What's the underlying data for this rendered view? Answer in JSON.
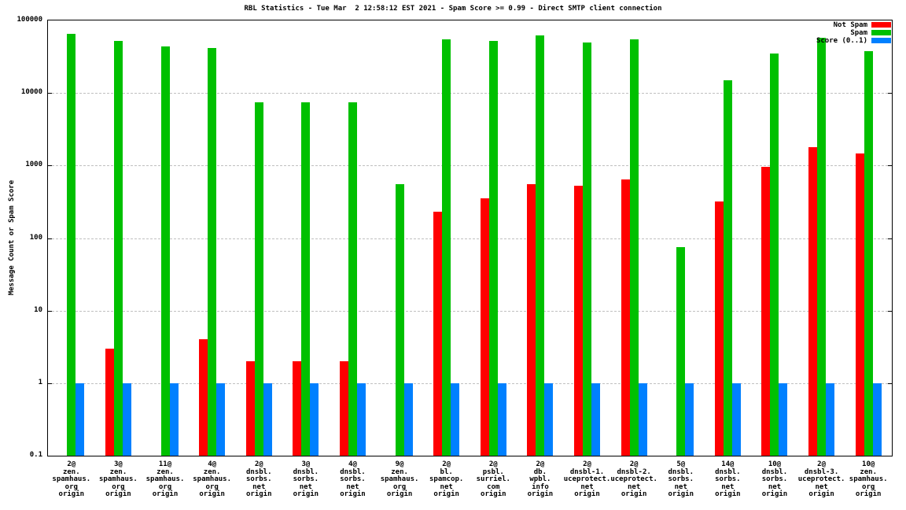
{
  "chart_data": {
    "type": "bar",
    "title": "RBL Statistics - Tue Mar  2 12:58:12 EST 2021 - Spam Score >= 0.99 - Direct SMTP client connection",
    "ylabel": "Message Count or Spam Score",
    "yscale": "log",
    "ylim": [
      0.1,
      100000
    ],
    "grid": true,
    "legend_position": "top-right",
    "yticks": [
      {
        "value": 0.1,
        "label": "0.1"
      },
      {
        "value": 1,
        "label": "1"
      },
      {
        "value": 10,
        "label": "10"
      },
      {
        "value": 100,
        "label": "100"
      },
      {
        "value": 1000,
        "label": "1000"
      },
      {
        "value": 10000,
        "label": "10000"
      },
      {
        "value": 100000,
        "label": "100000"
      }
    ],
    "categories": [
      [
        "2@",
        "zen.",
        "spamhaus.",
        "org",
        "origin"
      ],
      [
        "3@",
        "zen.",
        "spamhaus.",
        "org",
        "origin"
      ],
      [
        "11@",
        "zen.",
        "spamhaus.",
        "org",
        "origin"
      ],
      [
        "4@",
        "zen.",
        "spamhaus.",
        "org",
        "origin"
      ],
      [
        "2@",
        "dnsbl.",
        "sorbs.",
        "net",
        "origin"
      ],
      [
        "3@",
        "dnsbl.",
        "sorbs.",
        "net",
        "origin"
      ],
      [
        "4@",
        "dnsbl.",
        "sorbs.",
        "net",
        "origin"
      ],
      [
        "9@",
        "zen.",
        "spamhaus.",
        "org",
        "origin"
      ],
      [
        "2@",
        "bl.",
        "spamcop.",
        "net",
        "origin"
      ],
      [
        "2@",
        "psbl.",
        "surriel.",
        "com",
        "origin"
      ],
      [
        "2@",
        "db.",
        "wpbl.",
        "info",
        "origin"
      ],
      [
        "2@",
        "dnsbl-1.",
        "uceprotect.",
        "net",
        "origin"
      ],
      [
        "2@",
        "dnsbl-2.",
        "uceprotect.",
        "net",
        "origin"
      ],
      [
        "5@",
        "dnsbl.",
        "sorbs.",
        "net",
        "origin"
      ],
      [
        "14@",
        "dnsbl.",
        "sorbs.",
        "net",
        "origin"
      ],
      [
        "10@",
        "dnsbl.",
        "sorbs.",
        "net",
        "origin"
      ],
      [
        "2@",
        "dnsbl-3.",
        "uceprotect.",
        "net",
        "origin"
      ],
      [
        "10@",
        "zen.",
        "spamhaus.",
        "org",
        "origin"
      ]
    ],
    "series": [
      {
        "name": "Not Spam",
        "key": "not-spam",
        "color": "#ff0000",
        "values": [
          0,
          3,
          0,
          4,
          2,
          2,
          2,
          0,
          230,
          350,
          550,
          530,
          650,
          0,
          320,
          950,
          1800,
          1450
        ]
      },
      {
        "name": "Spam",
        "key": "spam",
        "color": "#00c000",
        "values": [
          65000,
          52000,
          44000,
          42000,
          7500,
          7500,
          7500,
          550,
          55000,
          52000,
          62000,
          50000,
          55000,
          75,
          15000,
          35000,
          58000,
          38000
        ]
      },
      {
        "name": "Score (0..1)",
        "key": "score",
        "color": "#0080ff",
        "values": [
          1,
          1,
          1,
          1,
          1,
          1,
          1,
          1,
          1,
          1,
          1,
          1,
          1,
          1,
          1,
          1,
          1,
          1
        ]
      }
    ]
  }
}
